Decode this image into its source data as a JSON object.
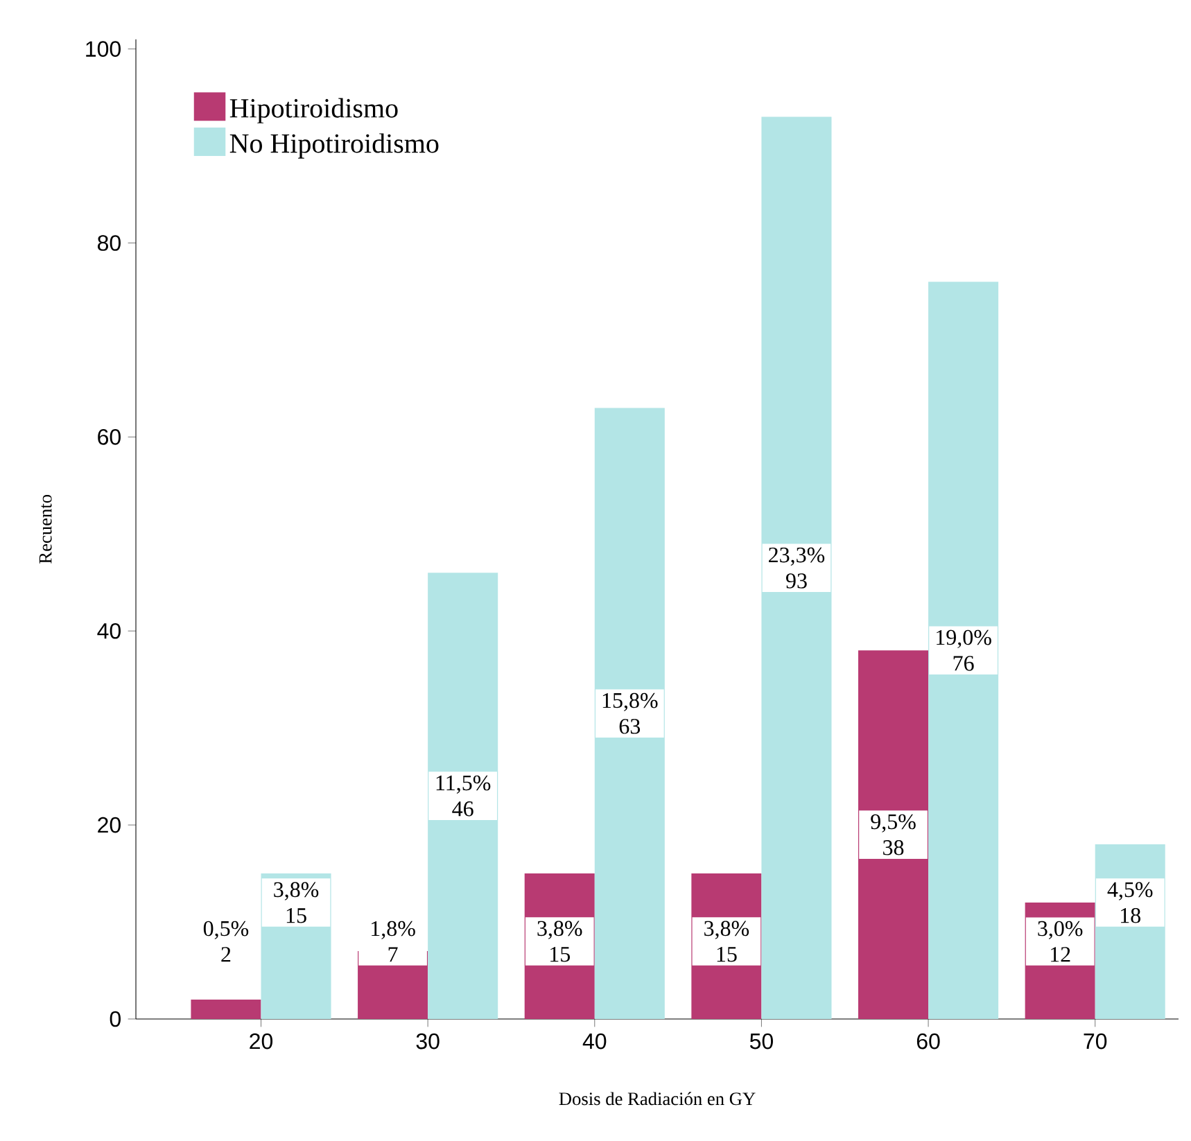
{
  "chart_data": {
    "type": "bar",
    "xlabel": "Dosis de Radiación en GY",
    "ylabel": "Recuento",
    "categories": [
      "20",
      "30",
      "40",
      "50",
      "60",
      "70"
    ],
    "series": [
      {
        "name": "Hipotiroidismo",
        "color": "#b83a72",
        "values": [
          2,
          7,
          15,
          15,
          38,
          12
        ],
        "value_labels": [
          "0,5% 2",
          "1,8% 7",
          "3,8% 15",
          "3,8% 15",
          "9,5% 38",
          "3,0% 12"
        ]
      },
      {
        "name": "No Hipotiroidismo",
        "color": "#b3e5e6",
        "values": [
          15,
          46,
          63,
          93,
          76,
          18
        ],
        "value_labels": [
          "3,8% 15",
          "11,5% 46",
          "15,8% 63",
          "23,3% 93",
          "19,0% 76",
          "4,5% 18"
        ]
      }
    ],
    "ylim": [
      0,
      101
    ],
    "yticks": [
      0,
      20,
      40,
      60,
      80,
      100
    ],
    "legend": "top left",
    "grid": false
  }
}
